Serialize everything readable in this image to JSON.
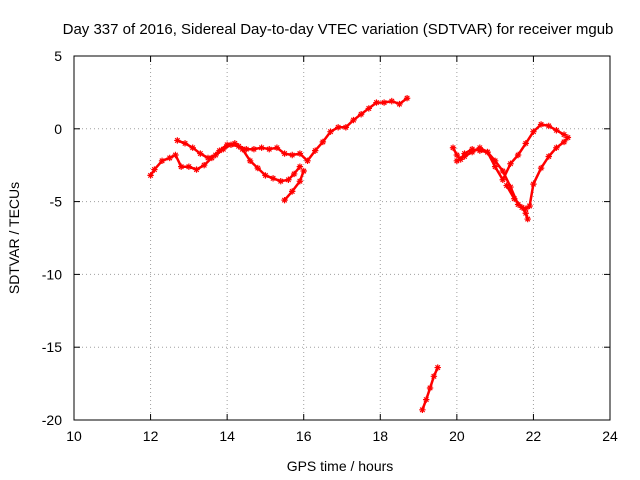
{
  "chart_data": {
    "type": "scatter",
    "title": "Day 337 of 2016, Sidereal Day-to-day VTEC variation (SDTVAR) for receiver mgub",
    "xlabel": "GPS time / hours",
    "ylabel": "SDTVAR / TECUs",
    "xlim": [
      10,
      24
    ],
    "ylim": [
      -20,
      5
    ],
    "xticks": [
      10,
      12,
      14,
      16,
      18,
      20,
      22,
      24
    ],
    "yticks": [
      -20,
      -15,
      -10,
      -5,
      0,
      5
    ],
    "xtick_labels": [
      "10",
      "12",
      "14",
      "16",
      "18",
      "20",
      "22",
      "24"
    ],
    "ytick_labels": [
      "-20",
      "-15",
      "-10",
      "-5",
      "0",
      "5"
    ],
    "grid": true,
    "legend": "none",
    "color": "#ff0000",
    "series": [
      {
        "x": [
          12.0,
          12.1,
          12.3,
          12.5,
          12.65,
          12.8,
          13.0,
          13.2,
          13.4,
          13.6,
          13.8,
          14.0,
          14.2,
          14.4,
          14.6,
          14.8,
          15.0,
          15.2,
          15.4,
          15.6,
          15.75,
          15.9
        ],
        "y": [
          -3.2,
          -2.8,
          -2.2,
          -2.0,
          -1.8,
          -2.6,
          -2.6,
          -2.8,
          -2.5,
          -2.0,
          -1.5,
          -1.1,
          -1.0,
          -1.4,
          -2.2,
          -2.7,
          -3.2,
          -3.4,
          -3.6,
          -3.5,
          -3.1,
          -2.6
        ]
      },
      {
        "x": [
          12.7,
          12.9,
          13.1,
          13.3,
          13.5,
          13.7,
          13.9,
          14.1,
          14.3,
          14.5,
          14.7,
          14.9,
          15.1,
          15.3,
          15.5,
          15.7,
          15.9,
          16.1,
          16.3,
          16.5,
          16.7,
          16.9,
          17.1,
          17.3,
          17.5,
          17.7,
          17.9,
          18.1,
          18.3,
          18.5,
          18.7
        ],
        "y": [
          -0.8,
          -1.0,
          -1.3,
          -1.7,
          -2.0,
          -1.8,
          -1.4,
          -1.1,
          -1.2,
          -1.4,
          -1.4,
          -1.3,
          -1.4,
          -1.3,
          -1.7,
          -1.8,
          -1.7,
          -2.2,
          -1.5,
          -0.9,
          -0.2,
          0.1,
          0.1,
          0.6,
          1.0,
          1.4,
          1.8,
          1.8,
          1.9,
          1.7,
          2.1
        ]
      },
      {
        "x": [
          15.5,
          15.7,
          15.9,
          16.0
        ],
        "y": [
          -4.9,
          -4.3,
          -3.6,
          -2.9
        ]
      },
      {
        "x": [
          19.9,
          20.0,
          20.1,
          20.2,
          20.4,
          20.6,
          20.8,
          21.0,
          21.2,
          21.4,
          21.6,
          21.8,
          21.9,
          22.0,
          22.2,
          22.4,
          22.6,
          22.8,
          22.9
        ],
        "y": [
          -1.3,
          -1.8,
          -2.1,
          -1.7,
          -1.4,
          -1.5,
          -1.6,
          -2.2,
          -2.9,
          -4.0,
          -5.2,
          -5.5,
          -5.3,
          -3.8,
          -2.7,
          -1.9,
          -1.3,
          -0.9,
          -0.6
        ]
      },
      {
        "x": [
          20.0,
          20.2,
          20.4,
          20.6,
          20.8,
          21.0,
          21.2,
          21.4,
          21.6,
          21.8,
          22.0,
          22.2,
          22.4,
          22.6,
          22.8
        ],
        "y": [
          -2.2,
          -1.9,
          -1.6,
          -1.3,
          -1.6,
          -2.6,
          -3.5,
          -2.4,
          -1.8,
          -1.0,
          -0.2,
          0.3,
          0.2,
          -0.1,
          -0.4
        ]
      },
      {
        "x": [
          21.3,
          21.5,
          21.7,
          21.8,
          21.85
        ],
        "y": [
          -3.9,
          -4.8,
          -5.4,
          -5.8,
          -6.2
        ]
      },
      {
        "x": [
          19.1,
          19.2,
          19.3,
          19.4,
          19.5
        ],
        "y": [
          -19.3,
          -18.6,
          -17.8,
          -17.0,
          -16.4
        ]
      }
    ]
  }
}
